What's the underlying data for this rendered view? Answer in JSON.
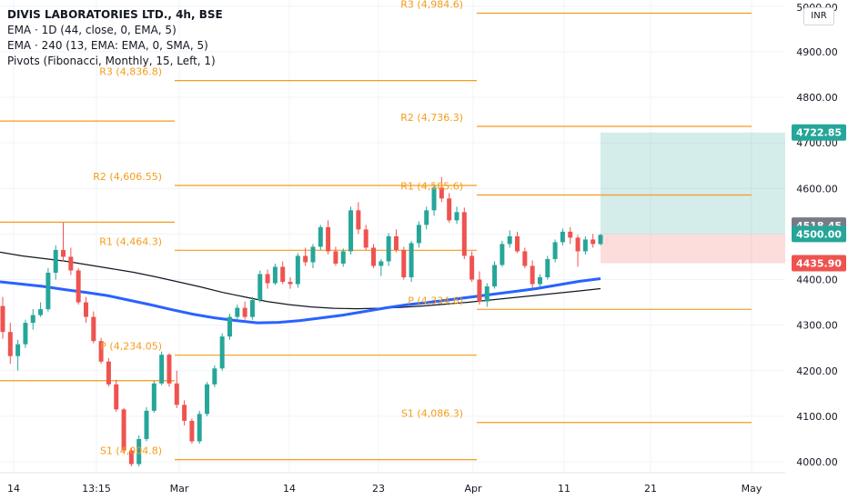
{
  "chart_data": {
    "type": "candlestick",
    "title": "DIVIS LABORATORIES LTD., 4h, BSE",
    "indicators": [
      "EMA · 1D (44, close, 0, EMA, 5)",
      "EMA · 240 (13, EMA: EMA, 0, SMA, 5)",
      "Pivots (Fibonacci, Monthly, 15, Left, 1)"
    ],
    "currency": "INR",
    "ylim": [
      3980,
      5020
    ],
    "y_ticks": [
      "4000.00",
      "4100.00",
      "4200.00",
      "4300.00",
      "4400.00",
      "4500.00",
      "4600.00",
      "4700.00",
      "4800.00",
      "4900.00",
      "5000.00"
    ],
    "x_ticks": [
      "14",
      "13:15",
      "Mar",
      "14",
      "23",
      "Apr",
      "11",
      "21",
      "May"
    ],
    "candles_ohlc": [
      [
        4342,
        4362,
        4270,
        4285
      ],
      [
        4285,
        4305,
        4215,
        4232
      ],
      [
        4232,
        4268,
        4200,
        4258
      ],
      [
        4258,
        4312,
        4250,
        4305
      ],
      [
        4305,
        4335,
        4290,
        4322
      ],
      [
        4322,
        4350,
        4318,
        4335
      ],
      [
        4335,
        4425,
        4330,
        4415
      ],
      [
        4415,
        4475,
        4400,
        4465
      ],
      [
        4465,
        4525,
        4440,
        4450
      ],
      [
        4450,
        4470,
        4410,
        4420
      ],
      [
        4420,
        4425,
        4345,
        4350
      ],
      [
        4350,
        4362,
        4305,
        4318
      ],
      [
        4318,
        4330,
        4260,
        4265
      ],
      [
        4265,
        4272,
        4215,
        4220
      ],
      [
        4220,
        4228,
        4165,
        4170
      ],
      [
        4170,
        4180,
        4110,
        4115
      ],
      [
        4115,
        4118,
        4020,
        4025
      ],
      [
        4025,
        4030,
        3990,
        3995
      ],
      [
        3995,
        4058,
        3990,
        4050
      ],
      [
        4050,
        4120,
        4045,
        4112
      ],
      [
        4112,
        4178,
        4108,
        4172
      ],
      [
        4172,
        4242,
        4168,
        4235
      ],
      [
        4235,
        4238,
        4165,
        4172
      ],
      [
        4172,
        4200,
        4118,
        4125
      ],
      [
        4125,
        4135,
        4080,
        4090
      ],
      [
        4090,
        4095,
        4040,
        4045
      ],
      [
        4045,
        4112,
        4040,
        4105
      ],
      [
        4105,
        4175,
        4100,
        4170
      ],
      [
        4170,
        4212,
        4164,
        4205
      ],
      [
        4205,
        4282,
        4200,
        4275
      ],
      [
        4275,
        4325,
        4268,
        4318
      ],
      [
        4318,
        4345,
        4310,
        4338
      ],
      [
        4338,
        4352,
        4312,
        4318
      ],
      [
        4318,
        4362,
        4312,
        4355
      ],
      [
        4355,
        4420,
        4350,
        4412
      ],
      [
        4412,
        4422,
        4380,
        4392
      ],
      [
        4392,
        4435,
        4388,
        4428
      ],
      [
        4428,
        4440,
        4390,
        4395
      ],
      [
        4395,
        4405,
        4380,
        4390
      ],
      [
        4390,
        4458,
        4382,
        4452
      ],
      [
        4452,
        4470,
        4430,
        4438
      ],
      [
        4438,
        4478,
        4425,
        4472
      ],
      [
        4472,
        4520,
        4465,
        4515
      ],
      [
        4515,
        4530,
        4455,
        4462
      ],
      [
        4462,
        4472,
        4430,
        4435
      ],
      [
        4435,
        4468,
        4428,
        4462
      ],
      [
        4462,
        4560,
        4455,
        4552
      ],
      [
        4552,
        4570,
        4500,
        4510
      ],
      [
        4510,
        4520,
        4465,
        4470
      ],
      [
        4470,
        4478,
        4425,
        4430
      ],
      [
        4430,
        4445,
        4408,
        4440
      ],
      [
        4440,
        4502,
        4430,
        4495
      ],
      [
        4495,
        4510,
        4460,
        4465
      ],
      [
        4465,
        4472,
        4400,
        4405
      ],
      [
        4405,
        4485,
        4395,
        4480
      ],
      [
        4480,
        4528,
        4470,
        4520
      ],
      [
        4520,
        4560,
        4510,
        4552
      ],
      [
        4552,
        4610,
        4540,
        4602
      ],
      [
        4602,
        4625,
        4570,
        4578
      ],
      [
        4578,
        4590,
        4525,
        4530
      ],
      [
        4530,
        4560,
        4522,
        4548
      ],
      [
        4548,
        4558,
        4445,
        4452
      ],
      [
        4452,
        4462,
        4395,
        4400
      ],
      [
        4400,
        4418,
        4345,
        4352
      ],
      [
        4352,
        4392,
        4340,
        4385
      ],
      [
        4385,
        4440,
        4380,
        4432
      ],
      [
        4432,
        4485,
        4428,
        4478
      ],
      [
        4478,
        4508,
        4470,
        4495
      ],
      [
        4495,
        4505,
        4458,
        4462
      ],
      [
        4462,
        4470,
        4425,
        4430
      ],
      [
        4430,
        4442,
        4382,
        4390
      ],
      [
        4390,
        4412,
        4385,
        4405
      ],
      [
        4405,
        4452,
        4400,
        4445
      ],
      [
        4445,
        4488,
        4438,
        4482
      ],
      [
        4482,
        4512,
        4475,
        4505
      ],
      [
        4505,
        4515,
        4478,
        4492
      ],
      [
        4492,
        4498,
        4428,
        4462
      ],
      [
        4462,
        4495,
        4455,
        4488
      ],
      [
        4488,
        4500,
        4470,
        4478
      ],
      [
        4478,
        4500,
        4475,
        4498
      ]
    ],
    "ema_1d_44": [
      4395,
      4390,
      4385,
      4378,
      4372,
      4365,
      4355,
      4345,
      4334,
      4324,
      4316,
      4310,
      4305,
      4306,
      4310,
      4316,
      4322,
      4330,
      4338,
      4345,
      4350,
      4356,
      4362,
      4368,
      4374,
      4380,
      4388,
      4396,
      4402
    ],
    "ema_240_13": [
      4460,
      4452,
      4446,
      4440,
      4432,
      4424,
      4416,
      4406,
      4395,
      4384,
      4372,
      4362,
      4352,
      4345,
      4340,
      4337,
      4336,
      4337,
      4339,
      4342,
      4346,
      4350,
      4355,
      4360,
      4365,
      4370,
      4375,
      4380
    ],
    "pivots": [
      {
        "label": "R3",
        "value": "4,836.8",
        "v": 4836.8
      },
      {
        "label": "R2",
        "value": "4,606.55",
        "v": 4606.55
      },
      {
        "label": "R1",
        "value": "4,464.3",
        "v": 4464.3
      },
      {
        "label": "P",
        "value": "4,234.05",
        "v": 4234.05
      },
      {
        "label": "S1",
        "value": "4,004.8",
        "v": 4004.8
      },
      {
        "label": "R3",
        "value": "4,984.6",
        "v": 4984.6
      },
      {
        "label": "R2",
        "value": "4,736.3",
        "v": 4736.3
      },
      {
        "label": "R1",
        "value": "4,585.6",
        "v": 4585.6
      },
      {
        "label": "P",
        "value": "4,334.6",
        "v": 4334.6
      },
      {
        "label": "S1",
        "value": "4,086.3",
        "v": 4086.3
      }
    ],
    "prev_month_levels": [
      4748,
      4526,
      4178
    ],
    "position": {
      "target": 4722.85,
      "entry": 4500.0,
      "stop": 4435.9
    },
    "price_labels": [
      {
        "text": "4722.85",
        "v": 4722.85,
        "color": "#26a69a"
      },
      {
        "text": "4518.45",
        "v": 4518.45,
        "color": "#787b86"
      },
      {
        "text": "4500.00",
        "v": 4500.0,
        "color": "#26a69a"
      },
      {
        "text": "4435.90",
        "v": 4435.9,
        "color": "#ef5350"
      }
    ],
    "colors": {
      "up": "#26a69a",
      "down": "#ef5350",
      "pivot": "#f59c1a",
      "ema_1d": "#2962ff",
      "ema_240": "#131722",
      "grid": "#f0f3fa",
      "axis_text": "#131722"
    }
  }
}
